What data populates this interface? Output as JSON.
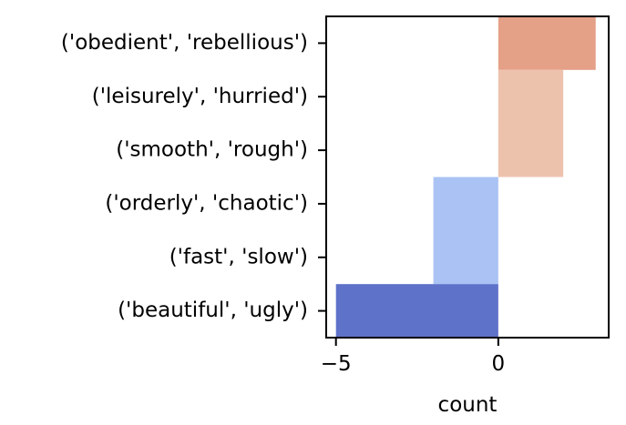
{
  "chart_data": {
    "type": "bar",
    "orientation": "horizontal",
    "title": "",
    "xlabel": "count",
    "ylabel": "",
    "categories": [
      "('obedient', 'rebellious')",
      "('leisurely', 'hurried')",
      "('smooth', 'rough')",
      "('orderly', 'chaotic')",
      "('fast', 'slow')",
      "('beautiful', 'ugly')"
    ],
    "xlim": [
      -5.3,
      3.4
    ],
    "x_ticks": [
      -5,
      0
    ],
    "x_tick_labels": [
      "−5",
      "0"
    ],
    "grid": false,
    "legend": "none",
    "bins": [
      {
        "from_row": 0,
        "to_row": 1,
        "value": 3,
        "color": "#e5a088"
      },
      {
        "from_row": 1,
        "to_row": 3,
        "value": 2,
        "color": "#edc2ad"
      },
      {
        "from_row": 3,
        "to_row": 5,
        "value": -2,
        "color": "#aac3f4"
      },
      {
        "from_row": 5,
        "to_row": 6,
        "value": -5,
        "color": "#5f72c9"
      }
    ]
  }
}
